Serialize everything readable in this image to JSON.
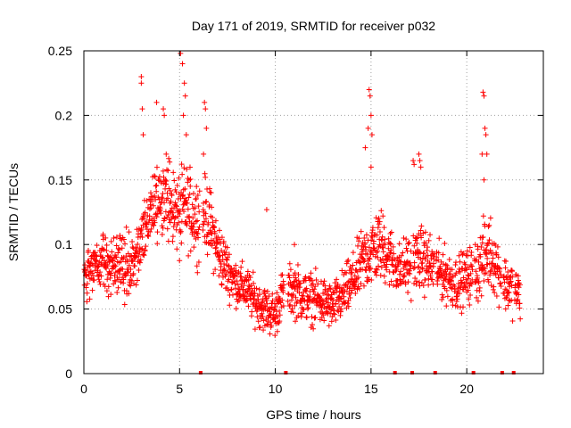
{
  "chart_data": {
    "type": "scatter",
    "title": "Day 171 of 2019, SRMTID for receiver p032",
    "xlabel": "GPS time / hours",
    "ylabel": "SRMTID / TECUs",
    "xlim": [
      0,
      24
    ],
    "ylim": [
      0,
      0.25
    ],
    "xticks": [
      0,
      5,
      10,
      15,
      20
    ],
    "xtick_labels": [
      "0",
      "5",
      "10",
      "15",
      "20"
    ],
    "yticks": [
      0,
      0.05,
      0.1,
      0.15,
      0.2,
      0.25
    ],
    "ytick_labels": [
      "0",
      "0.05",
      "0.1",
      "0.15",
      "0.2",
      "0.25"
    ],
    "grid": true,
    "marker": "+",
    "color": "#ff0000",
    "series": [
      {
        "name": "SRMTID",
        "envelope": {
          "x": [
            0,
            0.5,
            1,
            1.5,
            2,
            2.5,
            3,
            3.3,
            3.6,
            4,
            4.3,
            4.6,
            5,
            5.3,
            5.6,
            6,
            6.3,
            6.6,
            7,
            7.5,
            8,
            8.5,
            9,
            9.5,
            10,
            10.3,
            10.6,
            11,
            11.5,
            12,
            12.5,
            13,
            13.5,
            14,
            14.5,
            15,
            15.5,
            16,
            16.5,
            17,
            17.5,
            18,
            18.5,
            19,
            19.5,
            20,
            20.5,
            20.9,
            21.2,
            21.5,
            22,
            22.5,
            22.8
          ],
          "center": [
            0.075,
            0.08,
            0.085,
            0.085,
            0.085,
            0.08,
            0.1,
            0.12,
            0.13,
            0.14,
            0.135,
            0.13,
            0.12,
            0.13,
            0.125,
            0.12,
            0.125,
            0.115,
            0.095,
            0.08,
            0.07,
            0.065,
            0.055,
            0.05,
            0.045,
            0.06,
            0.065,
            0.065,
            0.06,
            0.058,
            0.055,
            0.052,
            0.06,
            0.07,
            0.085,
            0.095,
            0.1,
            0.09,
            0.08,
            0.085,
            0.09,
            0.085,
            0.08,
            0.075,
            0.07,
            0.075,
            0.08,
            0.09,
            0.095,
            0.085,
            0.07,
            0.065,
            0.06
          ],
          "spread": [
            0.03,
            0.03,
            0.035,
            0.035,
            0.035,
            0.035,
            0.04,
            0.045,
            0.045,
            0.045,
            0.045,
            0.045,
            0.05,
            0.045,
            0.045,
            0.045,
            0.04,
            0.04,
            0.035,
            0.03,
            0.025,
            0.025,
            0.025,
            0.025,
            0.025,
            0.025,
            0.025,
            0.03,
            0.028,
            0.028,
            0.028,
            0.025,
            0.028,
            0.03,
            0.035,
            0.04,
            0.04,
            0.035,
            0.03,
            0.035,
            0.035,
            0.035,
            0.03,
            0.03,
            0.03,
            0.03,
            0.035,
            0.04,
            0.04,
            0.035,
            0.03,
            0.03,
            0.025
          ],
          "gaps_hours": [
            [
              6.05,
              6.2
            ],
            [
              10.45,
              10.65
            ],
            [
              16.2,
              16.25
            ],
            [
              16.6,
              16.65
            ],
            [
              17.1,
              17.2
            ],
            [
              18.3,
              18.4
            ],
            [
              19.3,
              19.35
            ],
            [
              20.3,
              20.4
            ],
            [
              21.8,
              21.9
            ],
            [
              22.4,
              22.5
            ]
          ]
        },
        "peaks": [
          {
            "x": 3.0,
            "y": 0.23
          },
          {
            "x": 3.0,
            "y": 0.225
          },
          {
            "x": 3.05,
            "y": 0.205
          },
          {
            "x": 3.1,
            "y": 0.185
          },
          {
            "x": 3.8,
            "y": 0.21
          },
          {
            "x": 4.15,
            "y": 0.205
          },
          {
            "x": 4.2,
            "y": 0.2
          },
          {
            "x": 4.3,
            "y": 0.17
          },
          {
            "x": 5.05,
            "y": 0.248
          },
          {
            "x": 5.15,
            "y": 0.24
          },
          {
            "x": 5.25,
            "y": 0.225
          },
          {
            "x": 5.3,
            "y": 0.215
          },
          {
            "x": 5.2,
            "y": 0.2
          },
          {
            "x": 5.35,
            "y": 0.185
          },
          {
            "x": 6.3,
            "y": 0.21
          },
          {
            "x": 6.35,
            "y": 0.205
          },
          {
            "x": 6.4,
            "y": 0.19
          },
          {
            "x": 6.25,
            "y": 0.17
          },
          {
            "x": 9.55,
            "y": 0.127
          },
          {
            "x": 11.0,
            "y": 0.1
          },
          {
            "x": 14.9,
            "y": 0.22
          },
          {
            "x": 14.95,
            "y": 0.215
          },
          {
            "x": 15.0,
            "y": 0.2
          },
          {
            "x": 14.85,
            "y": 0.19
          },
          {
            "x": 15.05,
            "y": 0.185
          },
          {
            "x": 14.7,
            "y": 0.175
          },
          {
            "x": 15.0,
            "y": 0.16
          },
          {
            "x": 17.2,
            "y": 0.165
          },
          {
            "x": 17.25,
            "y": 0.162
          },
          {
            "x": 17.5,
            "y": 0.17
          },
          {
            "x": 17.55,
            "y": 0.165
          },
          {
            "x": 17.6,
            "y": 0.16
          },
          {
            "x": 20.85,
            "y": 0.218
          },
          {
            "x": 20.9,
            "y": 0.215
          },
          {
            "x": 20.95,
            "y": 0.19
          },
          {
            "x": 21.0,
            "y": 0.185
          },
          {
            "x": 20.8,
            "y": 0.17
          },
          {
            "x": 21.05,
            "y": 0.17
          },
          {
            "x": 20.9,
            "y": 0.15
          }
        ]
      }
    ],
    "zero_markers_x": [
      6.1,
      10.55,
      16.25,
      17.15,
      18.35,
      20.35,
      21.85,
      22.45
    ]
  }
}
